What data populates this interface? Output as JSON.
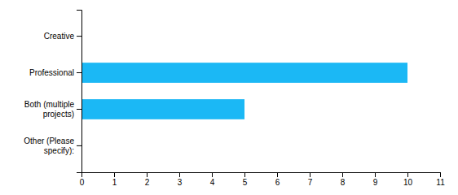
{
  "chart_data": {
    "type": "bar",
    "orientation": "horizontal",
    "categories": [
      "Creative",
      "Professional",
      "Both (multiple\nprojects)",
      "Other (Please\nspecify):"
    ],
    "values": [
      0,
      10,
      5,
      0
    ],
    "color": "#1BB8F5",
    "xlim": [
      0,
      11
    ],
    "xticks": [
      0,
      1,
      2,
      3,
      4,
      5,
      6,
      7,
      8,
      9,
      10,
      11
    ],
    "grid": false
  }
}
